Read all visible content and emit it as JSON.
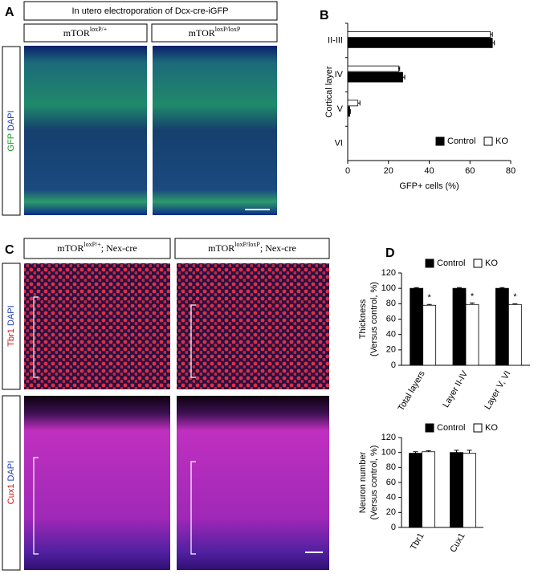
{
  "figure": {
    "panel_labels": [
      "A",
      "B",
      "C",
      "D"
    ],
    "a_title": "In utero electroporation of Dcx-cre-iGFP",
    "a_columns": [
      {
        "gene": "mTOR",
        "genotype": "loxP/+"
      },
      {
        "gene": "mTOR",
        "genotype": "loxP/loxP"
      }
    ],
    "a_stain": [
      "GFP",
      "DAPI"
    ],
    "c_columns": [
      {
        "gene": "mTOR",
        "genotype": "loxP/+",
        "driver": "; Nex-cre"
      },
      {
        "gene": "mTOR",
        "genotype": "loxP/loxP",
        "driver": "; Nex-cre"
      }
    ],
    "c_rows": [
      [
        "Tbr1",
        "DAPI"
      ],
      [
        "Cux1",
        "DAPI"
      ]
    ]
  },
  "chart_data": [
    {
      "type": "hbar",
      "y_label": "Cortical layer",
      "x_label": "GFP+ cells (%)",
      "categories": [
        "II-III",
        "IV",
        "V",
        "VI"
      ],
      "series": [
        {
          "name": "Control",
          "color": "#000000",
          "values": [
            71,
            27,
            1,
            0
          ],
          "errors": [
            1,
            1,
            0.3,
            0
          ]
        },
        {
          "name": "KO",
          "color": "#ffffff",
          "values": [
            70,
            25,
            5,
            0
          ],
          "errors": [
            1,
            0.5,
            1,
            0
          ]
        }
      ],
      "xlim": [
        0,
        80
      ],
      "xticks": [
        0,
        20,
        40,
        60,
        80
      ],
      "legend": "lower right"
    },
    {
      "type": "bar",
      "y_label": [
        "Thickness",
        "(Versus control, %)"
      ],
      "categories": [
        "Total layers",
        "Layer II-IV",
        "Layer V, VI"
      ],
      "series": [
        {
          "name": "Control",
          "color": "#000000",
          "values": [
            100,
            100,
            100
          ],
          "errors": [
            1,
            1,
            1
          ]
        },
        {
          "name": "KO",
          "color": "#ffffff",
          "values": [
            78,
            79,
            79
          ],
          "errors": [
            1,
            2,
            1
          ]
        }
      ],
      "annotations": [
        "*",
        "*",
        "*"
      ],
      "ylim": [
        0,
        120
      ],
      "yticks": [
        0,
        20,
        40,
        60,
        80,
        100,
        120
      ],
      "legend": "upper center"
    },
    {
      "type": "bar",
      "y_label": [
        "Neuron number",
        "(Versus control, %)"
      ],
      "categories": [
        "Tbr1",
        "Cux1"
      ],
      "series": [
        {
          "name": "Control",
          "color": "#000000",
          "values": [
            99,
            100
          ],
          "errors": [
            2,
            3
          ]
        },
        {
          "name": "KO",
          "color": "#ffffff",
          "values": [
            101,
            99
          ],
          "errors": [
            1.5,
            4
          ]
        }
      ],
      "ylim": [
        0,
        120
      ],
      "yticks": [
        0,
        20,
        40,
        60,
        80,
        100,
        120
      ],
      "legend": "upper center"
    }
  ]
}
